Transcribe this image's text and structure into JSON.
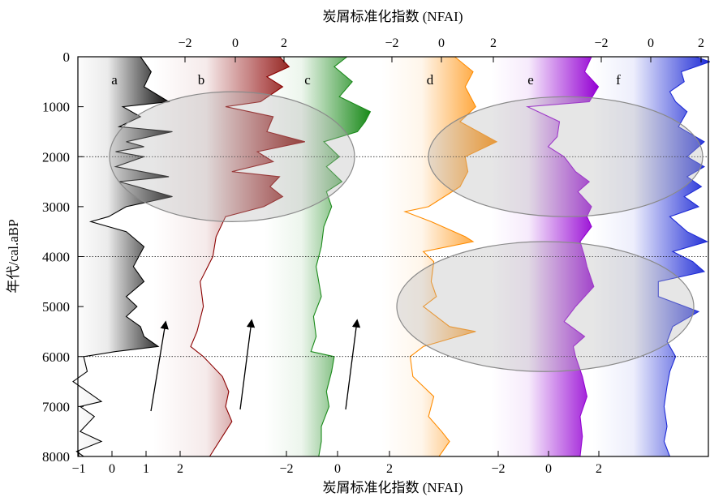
{
  "chart_data": {
    "type": "area",
    "title": "",
    "xlabel_top": "炭屑标准化指数 (NFAI)",
    "xlabel_bottom": "炭屑标准化指数 (NFAI)",
    "ylabel": "年代/cal.aBP",
    "ylim": [
      0,
      8000
    ],
    "y_ticks": [
      "0",
      "1000",
      "2000",
      "3000",
      "4000",
      "5000",
      "6000",
      "7000",
      "8000"
    ],
    "y_tick_values": [
      0,
      1000,
      2000,
      3000,
      4000,
      5000,
      6000,
      7000,
      8000
    ],
    "reference_lines_y": [
      2000,
      4000,
      6000
    ],
    "grid": false,
    "legend": "none",
    "x_tick_labels_top": {
      "b": [
        "−2",
        "0",
        "2"
      ],
      "d": [
        "−2",
        "0",
        "2"
      ],
      "f": [
        "−2",
        "0",
        "2"
      ]
    },
    "x_tick_labels_bottom": {
      "a": [
        "−1",
        "0",
        "1",
        "2"
      ],
      "c": [
        "−2",
        "0",
        "2"
      ],
      "e": [
        "−2",
        "0",
        "2"
      ]
    },
    "panels": [
      {
        "label": "a",
        "axis": "bottom",
        "xlim": [
          -1,
          2.2
        ],
        "color": "#000000",
        "ages": [
          0,
          300,
          600,
          900,
          1000,
          1200,
          1400,
          1500,
          1700,
          1800,
          1900,
          2000,
          2200,
          2400,
          2500,
          2600,
          2800,
          3000,
          3200,
          3300,
          3500,
          3800,
          4200,
          4500,
          4800,
          5000,
          5200,
          5400,
          5600,
          5800,
          5900,
          6000,
          6300,
          6500,
          6900,
          7000,
          7200,
          7500,
          7700,
          7900,
          8000
        ],
        "values": [
          0.9,
          1.2,
          1.0,
          1.7,
          0.4,
          0.9,
          0.3,
          1.8,
          0.5,
          1.0,
          0.2,
          1.0,
          0.2,
          1.7,
          0.3,
          0.8,
          1.8,
          0.5,
          0.0,
          -0.5,
          0.5,
          1.0,
          0.7,
          1.0,
          0.5,
          0.8,
          0.5,
          0.9,
          1.0,
          1.4,
          0.2,
          -0.7,
          -0.6,
          -1.0,
          -0.2,
          -0.8,
          -0.4,
          -0.8,
          -0.2,
          -0.9,
          -0.7
        ]
      },
      {
        "label": "b",
        "axis": "top",
        "xlim": [
          -2.8,
          1.8
        ],
        "color": "#8b0000",
        "ages": [
          0,
          200,
          400,
          600,
          900,
          1000,
          1200,
          1500,
          1700,
          1900,
          2100,
          2300,
          2400,
          2600,
          2800,
          3000,
          3200,
          3600,
          4000,
          4500,
          5000,
          5500,
          5800,
          6000,
          6400,
          6700,
          7000,
          7300,
          7600,
          8000
        ],
        "values": [
          1.2,
          1.5,
          0.8,
          1.3,
          0.6,
          -0.5,
          1.0,
          0.8,
          2.0,
          0.5,
          1.0,
          -0.3,
          1.2,
          0.9,
          1.3,
          0.7,
          -0.5,
          -0.8,
          -0.9,
          -1.3,
          -1.2,
          -1.4,
          -1.6,
          -1.2,
          -0.6,
          -0.4,
          -0.5,
          -0.3,
          -0.6,
          -1.0
        ]
      },
      {
        "label": "c",
        "axis": "bottom",
        "xlim": [
          -3.2,
          1.8
        ],
        "color": "#1a8a1a",
        "ages": [
          0,
          200,
          500,
          800,
          1100,
          1300,
          1500,
          1700,
          1900,
          2000,
          2200,
          2500,
          2700,
          3000,
          3400,
          3800,
          4200,
          4800,
          5200,
          5600,
          5900,
          6000,
          6300,
          6700,
          7000,
          7400,
          7700,
          8000
        ],
        "values": [
          0.0,
          -0.5,
          0.2,
          -0.3,
          0.9,
          0.7,
          0.4,
          -0.9,
          -0.5,
          -0.3,
          -0.8,
          -0.2,
          -0.8,
          -0.6,
          -0.9,
          -1.0,
          -1.2,
          -1.0,
          -1.3,
          -1.2,
          -1.4,
          -0.5,
          -0.6,
          -0.8,
          -0.7,
          -1.0,
          -1.0,
          -1.1
        ]
      },
      {
        "label": "d",
        "axis": "top",
        "xlim": [
          -2.6,
          2.2
        ],
        "color": "#ff8c00",
        "ages": [
          0,
          300,
          600,
          1000,
          1300,
          1700,
          2000,
          2300,
          2600,
          3000,
          3100,
          3300,
          3600,
          3700,
          3900,
          4100,
          4500,
          4800,
          5000,
          5200,
          5400,
          5500,
          5600,
          5800,
          6000,
          6400,
          6800,
          7200,
          7500,
          7700,
          8000
        ],
        "values": [
          0.2,
          0.9,
          0.6,
          1.0,
          0.4,
          1.8,
          0.6,
          0.7,
          0.4,
          -0.8,
          -1.7,
          -0.7,
          0.6,
          0.9,
          -1.0,
          -0.6,
          -0.7,
          -0.5,
          -1.0,
          -0.5,
          0.0,
          1.0,
          0.3,
          -1.0,
          -1.5,
          -1.4,
          -0.6,
          -0.8,
          -0.3,
          0.0,
          -0.4
        ]
      },
      {
        "label": "e",
        "axis": "bottom",
        "xlim": [
          -3.4,
          2.1
        ],
        "color": "#9400d3",
        "ages": [
          0,
          300,
          600,
          900,
          1000,
          1300,
          1600,
          1800,
          2000,
          2300,
          2500,
          2700,
          3000,
          3200,
          3400,
          3700,
          4000,
          4200,
          4600,
          5000,
          5300,
          5600,
          5800,
          6000,
          6400,
          6800,
          7200,
          7600,
          8000
        ],
        "values": [
          1.0,
          0.7,
          1.3,
          0.9,
          -1.8,
          -0.4,
          -0.5,
          -0.9,
          -0.2,
          0.3,
          0.9,
          0.4,
          1.0,
          0.8,
          1.0,
          0.5,
          0.7,
          0.8,
          1.1,
          0.3,
          -0.2,
          0.7,
          0.2,
          0.3,
          0.6,
          0.8,
          0.5,
          0.6,
          0.5
        ]
      },
      {
        "label": "f",
        "axis": "top",
        "xlim": [
          -2.3,
          1.8
        ],
        "color": "#1e2bd6",
        "ages": [
          0,
          100,
          300,
          500,
          700,
          900,
          1100,
          1400,
          1700,
          2000,
          2200,
          2400,
          2600,
          2800,
          3000,
          3200,
          3500,
          3700,
          3900,
          4100,
          4300,
          4500,
          4800,
          5100,
          5400,
          5700,
          6000,
          6300,
          6600,
          7000,
          7400,
          7700,
          8000
        ],
        "values": [
          1.3,
          1.8,
          0.8,
          0.9,
          0.4,
          0.6,
          1.0,
          0.7,
          1.6,
          1.0,
          1.6,
          1.0,
          1.5,
          0.9,
          1.4,
          0.4,
          1.0,
          1.7,
          0.5,
          1.2,
          1.6,
          0.0,
          0.0,
          1.4,
          0.5,
          0.3,
          0.6,
          0.4,
          0.3,
          0.2,
          0.3,
          0.2,
          0.4
        ]
      }
    ],
    "ellipses": [
      {
        "center_age": 2000,
        "age_radius": 1300,
        "x_from": "a",
        "note": ""
      },
      {
        "center_age": 2000,
        "age_radius": 1200,
        "x_from": "e"
      },
      {
        "center_age": 5000,
        "age_radius": 1300,
        "x_from": "d"
      }
    ],
    "arrows_panels": [
      "a",
      "b",
      "c"
    ]
  }
}
